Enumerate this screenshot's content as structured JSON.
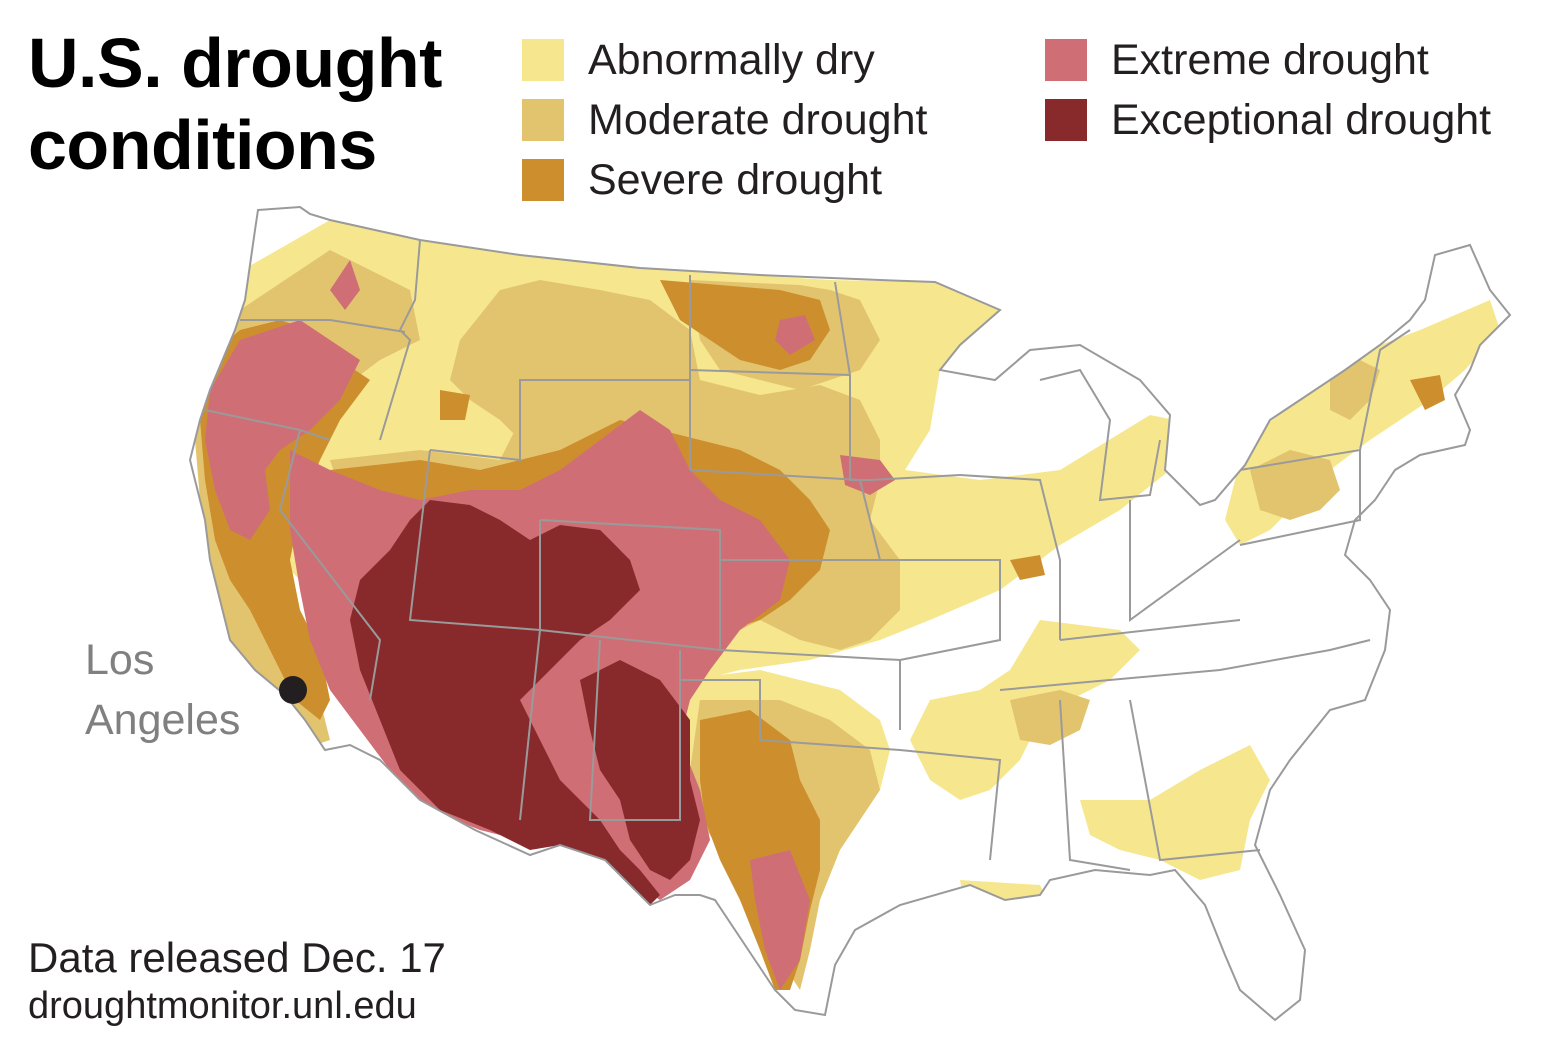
{
  "title": {
    "line1": "U.S. drought",
    "line2": "conditions"
  },
  "legend": [
    {
      "label": "Abnormally dry",
      "color": "#f6e78f"
    },
    {
      "label": "Moderate drought",
      "color": "#e3c46e"
    },
    {
      "label": "Severe drought",
      "color": "#cd8f2e"
    },
    {
      "label": "Extreme drought",
      "color": "#cf6f75"
    },
    {
      "label": "Exceptional drought",
      "color": "#882a2c"
    }
  ],
  "city": {
    "name": "Los\nAngeles",
    "dot_color": "#231f20"
  },
  "footnote": {
    "release": "Data released Dec. 17",
    "source": "droughtmonitor.unl.edu"
  },
  "colors": {
    "land": "#ffffff",
    "borders": "#9a9a9a",
    "text": "#231f20",
    "label_gray": "#808080"
  }
}
